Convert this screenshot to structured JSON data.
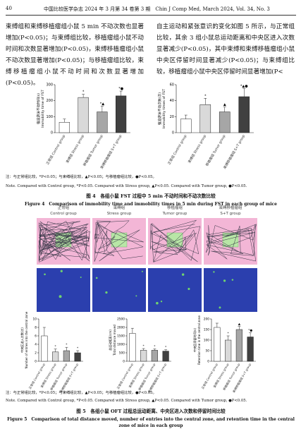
{
  "header": {
    "page": "40",
    "journal": "中国比较医学杂志 2024 年 3 月第 34 卷第 3 期　Chin J Comp Med, March 2024, Vol. 34, No. 3"
  },
  "body": {
    "left": "束缚组和束缚移植瘤组小鼠 5 min 不动次数也显著增加(P<0.05)；与束缚组比较，移植瘤组小鼠不动时间和次数显著增加(P<0.05)，束缚移植瘤组小鼠不动次数显著增加(P<0.05)；与移植瘤组比较，束缚移植瘤组小鼠不动时间和次数显著增加(P<0.05)。",
    "right": "自主运动和紧张意识的变化如图 5 所示，与正常组比较，其余 3 组小鼠总运动距离和中央区进入次数显著减少(P<0.05)，其中束缚和束缚移植瘤组小鼠中央区停留时间显著减少(P<0.05)；与束缚组比较，移植瘤组小鼠中央区停留时间显著增加(P<"
  },
  "chart_data": [
    {
      "type": "bar",
      "ylabel": [
        "强迫游泳不动时间(s)",
        "Immobility time of FST"
      ],
      "categories": [
        "正常组 Control group",
        "束缚组 Stress group",
        "移植瘤组 Tumor group",
        "束缚移植瘤组 S+T group"
      ],
      "values": [
        65,
        220,
        130,
        230
      ],
      "errors": [
        20,
        20,
        35,
        30
      ],
      "markers": [
        null,
        "*",
        "*▲",
        "*●"
      ],
      "colors": [
        "#ffffff",
        "#d9d9d9",
        "#a6a6a6",
        "#404040"
      ],
      "ylim": [
        0,
        300
      ],
      "yticks": [
        0,
        100,
        200,
        300
      ]
    },
    {
      "type": "bar",
      "ylabel": [
        "强迫游泳不动次数(次)",
        "Immobility times of FST"
      ],
      "categories": [
        "正常组 Control group",
        "束缚组 Stress group",
        "移植瘤组 Tumor group",
        "束缚移植瘤组 S+T group"
      ],
      "values": [
        17,
        35,
        26,
        45
      ],
      "errors": [
        5,
        8,
        6,
        10
      ],
      "markers": [
        null,
        "*",
        "▲",
        "*▲●"
      ],
      "colors": [
        "#ffffff",
        "#d9d9d9",
        "#a6a6a6",
        "#404040"
      ],
      "ylim": [
        0,
        60
      ],
      "yticks": [
        0,
        20,
        40,
        60
      ]
    },
    {
      "type": "bar",
      "ylabel": [
        "中央区进入次数(次)",
        "Number of entries into the central zone"
      ],
      "categories": [
        "正常组 Control group",
        "束缚组 Stress group",
        "移植瘤组 Tumor group",
        "束缚移植瘤组 S+T group"
      ],
      "values": [
        6,
        2.2,
        2.5,
        2
      ],
      "errors": [
        2,
        0.7,
        0.8,
        0.5
      ],
      "markers": [
        null,
        "*",
        "*",
        "*"
      ],
      "colors": [
        "#ffffff",
        "#d9d9d9",
        "#a6a6a6",
        "#404040"
      ],
      "ylim": [
        0,
        10
      ],
      "yticks": [
        0,
        2,
        4,
        6,
        8,
        10
      ]
    },
    {
      "type": "bar",
      "ylabel": [
        "总运动距离(cm)",
        "Total distance moved"
      ],
      "categories": [
        "正常组 Control group",
        "束缚组 Stress group",
        "移植瘤组 Tumor group",
        "束缚移植瘤组 S+T group"
      ],
      "values": [
        1650,
        650,
        650,
        600
      ],
      "errors": [
        300,
        100,
        80,
        80
      ],
      "markers": [
        null,
        "*",
        "*",
        "*"
      ],
      "colors": [
        "#ffffff",
        "#d9d9d9",
        "#a6a6a6",
        "#404040"
      ],
      "ylim": [
        0,
        2500
      ],
      "yticks": [
        0,
        500,
        1000,
        1500,
        2000,
        2500
      ]
    },
    {
      "type": "bar",
      "ylabel": [
        "中央区停留时间(s)",
        "Retention time in the central zone"
      ],
      "categories": [
        "正常组 Control group",
        "束缚组 Stress group",
        "移植瘤组 Tumor group",
        "束缚移植瘤组 S+T group"
      ],
      "values": [
        160,
        100,
        150,
        115
      ],
      "errors": [
        20,
        20,
        15,
        20
      ],
      "markers": [
        null,
        "*",
        "▲",
        "*●"
      ],
      "colors": [
        "#ffffff",
        "#d9d9d9",
        "#a6a6a6",
        "#404040"
      ],
      "ylim": [
        0,
        200
      ],
      "yticks": [
        0,
        50,
        100,
        150,
        200
      ]
    }
  ],
  "figure4": {
    "note_zh": "注：与正常组比较，*P<0.05；与束缚组比较，▲P<0.05；与移植瘤组比较，●P<0.05。",
    "note_en": "Note. Compared with Control group, *P<0.05. Compared with Stress group, ▲P<0.05. Compared with Tumor group, ●P<0.05.",
    "caption_zh": "图 4　各组小鼠 FST 过程中 5 min 不动时间和不动次数比较",
    "caption_en": "Figure 4　Comparison of immobility time and immobility times in 5 min during FST in each group of mice"
  },
  "figure5": {
    "groups": [
      {
        "zh": "正常组",
        "en": "Control group"
      },
      {
        "zh": "束缚组",
        "en": "Stress group"
      },
      {
        "zh": "移植瘤组",
        "en": "Tumor group"
      },
      {
        "zh": "束缚移植瘤组",
        "en": "S+T group"
      }
    ],
    "note_zh": "注：与正常组比较，*P<0.05；与束缚组比较，▲P<0.05；与移植瘤组比较，●P<0.05。",
    "note_en": "Note. Compared with Control group, *P<0.05. Compared with Stress group, ▲P<0.05. Compared with Tumor group, ●P<0.05.",
    "caption_zh": "图 5　各组小鼠 OFT 过程总运动距离、中央区进入次数和停留时间比较",
    "caption_en": "Figure 5　Comparison of total distance moved, number of entries into the central zone, and retention time in the central zone of mice in each group"
  }
}
